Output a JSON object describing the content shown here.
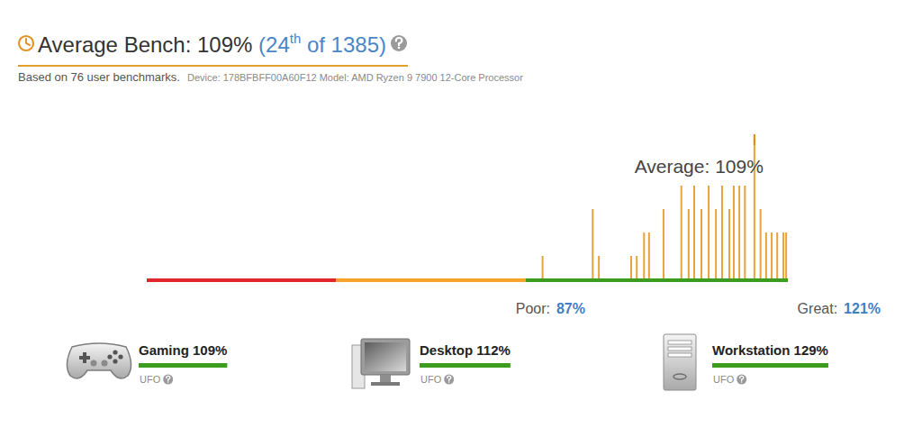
{
  "header": {
    "title": "Average Bench: 109%",
    "rank_open": "(24",
    "rank_suffix": "th",
    "rank_close": " of 1385)",
    "subtitle": "Based on 76 user benchmarks.",
    "device": "Device: 178BFBFF00A60F12 Model: AMD Ryzen 9 7900 12-Core Processor"
  },
  "chart_data": {
    "type": "bar",
    "x": [
      71,
      80,
      81.1,
      86.9,
      87.9,
      89.2,
      90.1,
      92.7,
      95.9,
      97.2,
      98.2,
      99.5,
      100.8,
      102.1,
      103.2,
      104.5,
      105.3,
      106.3,
      107.3,
      109,
      110.1,
      111.1,
      112.1,
      113.1,
      114.2,
      114.7
    ],
    "values": [
      1,
      3,
      1,
      1,
      1,
      2,
      2,
      3,
      4,
      3,
      4,
      3,
      4,
      3,
      4,
      3,
      4,
      4,
      4,
      6,
      3,
      2,
      2,
      2,
      2,
      2
    ],
    "color": "#e8a43c",
    "xlim": [
      0,
      115
    ],
    "ylim": [
      0,
      6
    ],
    "tick_labels": false,
    "bands": {
      "edges": [
        0,
        34,
        68,
        115
      ],
      "colors": [
        "#e3262b",
        "#f7a22a",
        "#3b9c1d"
      ]
    },
    "annotations": [
      {
        "x": 109,
        "text": "Average: 109%"
      }
    ]
  },
  "range_labels": {
    "poor_label": "Poor:",
    "poor_value": "87%",
    "great_label": "Great:",
    "great_value": "121%"
  },
  "scores": [
    {
      "label": "Gaming 109%",
      "tier": "UFO"
    },
    {
      "label": "Desktop 112%",
      "tier": "UFO"
    },
    {
      "label": "Workstation 129%",
      "tier": "UFO"
    }
  ]
}
